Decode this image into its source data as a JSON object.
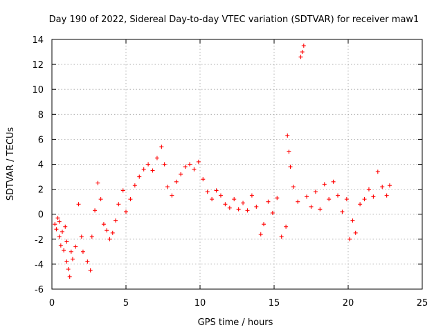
{
  "chart_data": {
    "type": "scatter",
    "title": "Day 190 of 2022, Sidereal Day-to-day VTEC variation (SDTVAR) for receiver maw1",
    "xlabel": "GPS time / hours",
    "ylabel": "SDTVAR / TECUs",
    "xlim": [
      0,
      25
    ],
    "ylim": [
      -6,
      14
    ],
    "xticks": [
      0,
      5,
      10,
      15,
      20,
      25
    ],
    "yticks": [
      -6,
      -4,
      -2,
      0,
      2,
      4,
      6,
      8,
      10,
      12,
      14
    ],
    "grid": true,
    "marker": "+",
    "color": "#ff0000",
    "series": [
      {
        "name": "SDTVAR",
        "x": [
          0.2,
          0.3,
          0.4,
          0.5,
          0.5,
          0.6,
          0.7,
          0.8,
          0.9,
          1.0,
          1.0,
          1.1,
          1.2,
          1.3,
          1.4,
          1.6,
          1.8,
          2.0,
          2.1,
          2.4,
          2.6,
          2.7,
          2.9,
          3.1,
          3.3,
          3.5,
          3.7,
          3.9,
          4.1,
          4.3,
          4.5,
          4.8,
          5.0,
          5.3,
          5.6,
          5.9,
          6.2,
          6.5,
          6.8,
          7.1,
          7.4,
          7.6,
          7.8,
          8.1,
          8.4,
          8.7,
          9.0,
          9.3,
          9.6,
          9.9,
          10.2,
          10.5,
          10.8,
          11.1,
          11.4,
          11.7,
          12.0,
          12.3,
          12.6,
          12.9,
          13.2,
          13.5,
          13.8,
          14.1,
          14.3,
          14.6,
          14.9,
          15.2,
          15.5,
          15.8,
          15.9,
          16.0,
          16.1,
          16.3,
          16.6,
          16.8,
          16.9,
          17.0,
          17.2,
          17.5,
          17.8,
          18.1,
          18.4,
          18.7,
          19.0,
          19.3,
          19.6,
          19.9,
          20.1,
          20.3,
          20.5,
          20.8,
          21.1,
          21.4,
          21.7,
          22.0,
          22.3,
          22.6,
          22.8
        ],
        "y": [
          -0.8,
          -1.2,
          -0.3,
          -1.8,
          -0.6,
          -2.5,
          -1.4,
          -2.9,
          -1.0,
          -2.2,
          -3.8,
          -4.4,
          -5.0,
          -3.0,
          -3.6,
          -2.6,
          0.8,
          -1.8,
          -3.0,
          -3.8,
          -4.5,
          -1.8,
          0.3,
          2.5,
          1.2,
          -0.8,
          -1.3,
          -2.0,
          -1.5,
          -0.5,
          0.8,
          1.9,
          0.2,
          1.2,
          2.3,
          3.0,
          3.6,
          4.0,
          3.5,
          4.5,
          5.4,
          4.0,
          2.2,
          1.5,
          2.6,
          3.2,
          3.8,
          4.0,
          3.6,
          4.2,
          2.8,
          1.8,
          1.2,
          1.9,
          1.5,
          0.8,
          0.5,
          1.2,
          0.4,
          0.9,
          0.3,
          1.5,
          0.6,
          -1.6,
          -0.8,
          1.0,
          0.1,
          1.3,
          -1.8,
          -1.0,
          6.3,
          5.0,
          3.8,
          2.2,
          1.0,
          12.6,
          13.0,
          13.5,
          1.4,
          0.6,
          1.8,
          0.4,
          2.4,
          1.2,
          2.6,
          1.5,
          0.2,
          1.2,
          -2.0,
          -0.5,
          -1.5,
          0.8,
          1.2,
          2.0,
          1.4,
          3.4,
          2.2,
          1.5,
          2.3
        ]
      }
    ]
  }
}
